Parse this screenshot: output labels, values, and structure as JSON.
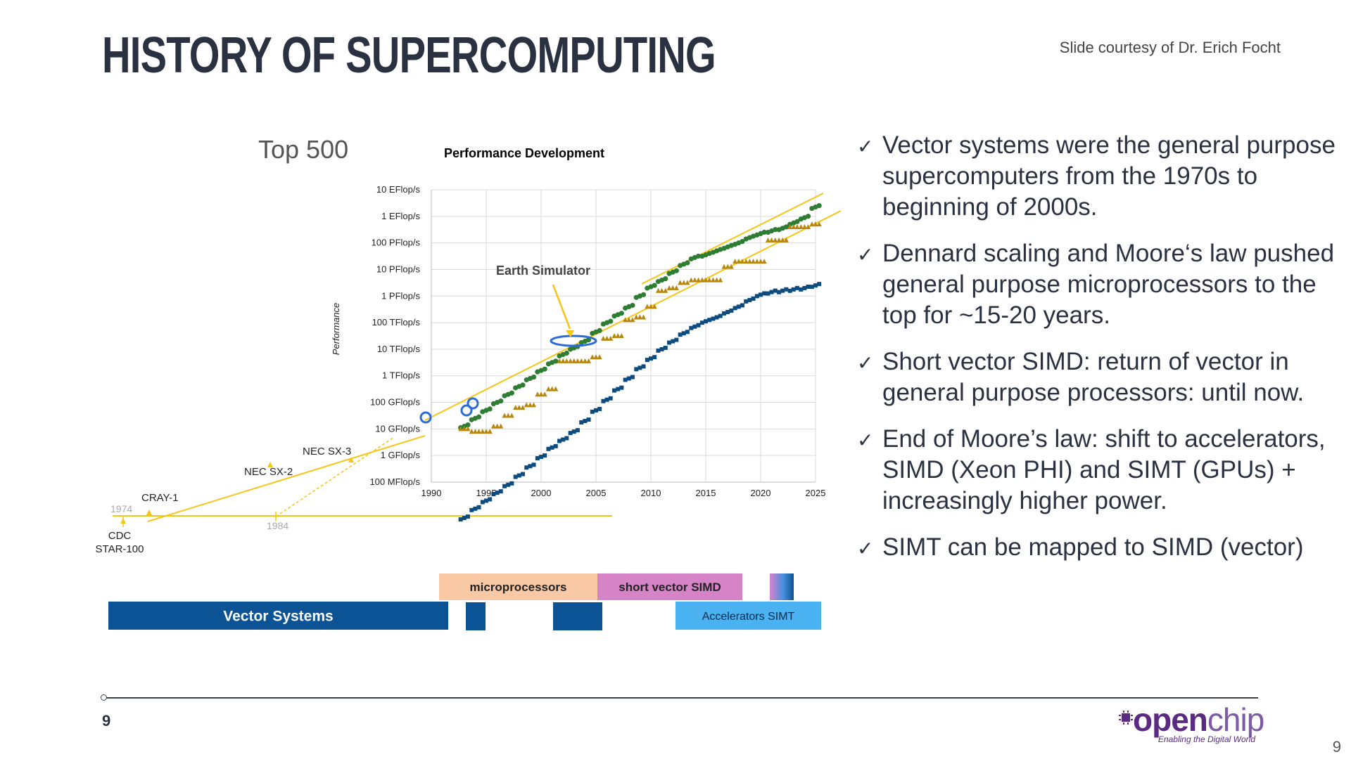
{
  "slide": {
    "title": "HISTORY OF SUPERCOMPUTING",
    "credit": "Slide courtesy of Dr. Erich Focht",
    "top500_label": "Top 500",
    "page_left": "9",
    "page_right": "9"
  },
  "bullets": [
    "Vector systems were the general purpose supercomputers from the 1970s to beginning of 2000s.",
    "Dennard scaling and Moore‘s law pushed general purpose microprocessors to the top for ~15-20 years.",
    "Short vector SIMD: return of vector in general purpose processors: until now.",
    "End of Moore’s law: shift to accelerators, SIMD (Xeon PHI) and SIMT (GPUs) + increasingly higher power.",
    "SIMT can be mapped to SIMD (vector)"
  ],
  "logo": {
    "text_a": "open",
    "text_b": "chip",
    "tagline": "Enabling the Digital World"
  },
  "chart_data": {
    "type": "scatter",
    "title": "Performance Development",
    "ylabel": "Performance",
    "log_scale_y": true,
    "x_ticks": [
      1990,
      1995,
      2000,
      2005,
      2010,
      2015,
      2020,
      2025
    ],
    "xlim": [
      1990,
      2025
    ],
    "y_ticks": [
      "100 MFlop/s",
      "1 GFlop/s",
      "10 GFlop/s",
      "100 GFlop/s",
      "1 TFlop/s",
      "10 TFlop/s",
      "100 TFlop/s",
      "1 PFlop/s",
      "10 PFlop/s",
      "100 PFlop/s",
      "1 EFlop/s",
      "10 EFlop/s"
    ],
    "ylim_log10_flops": [
      8,
      19
    ],
    "grid": true,
    "series": [
      {
        "color": "#2e7d32",
        "marker": "circle",
        "x": [
          1993,
          1994,
          1995,
          1996,
          1997,
          1998,
          1999,
          2000,
          2001,
          2002,
          2003,
          2004,
          2005,
          2006,
          2007,
          2008,
          2009,
          2010,
          2011,
          2012,
          2013,
          2014,
          2015,
          2016,
          2017,
          2018,
          2019,
          2020,
          2021,
          2022,
          2023,
          2024,
          2025
        ],
        "y": [
          1.1,
          1.4,
          1.7,
          2.0,
          2.3,
          2.6,
          2.9,
          3.2,
          3.5,
          3.8,
          4.05,
          4.3,
          4.65,
          5.0,
          5.3,
          5.6,
          6.0,
          6.35,
          6.6,
          6.9,
          7.2,
          7.45,
          7.55,
          7.7,
          7.85,
          8.0,
          8.2,
          8.35,
          8.45,
          8.55,
          8.75,
          8.95,
          9.35
        ]
      },
      {
        "color": "#b8860b",
        "marker": "triangle",
        "x": [
          1993,
          1994,
          1995,
          1996,
          1997,
          1998,
          1999,
          2000,
          2001,
          2002,
          2003,
          2004,
          2005,
          2006,
          2007,
          2008,
          2009,
          2010,
          2011,
          2012,
          2013,
          2014,
          2015,
          2016,
          2017,
          2018,
          2019,
          2020,
          2021,
          2022,
          2023,
          2024,
          2025
        ],
        "y": [
          1.0,
          0.9,
          0.9,
          1.1,
          1.5,
          1.8,
          1.9,
          2.3,
          2.5,
          3.55,
          3.55,
          3.55,
          3.7,
          4.4,
          4.5,
          5.1,
          5.2,
          5.6,
          6.2,
          6.3,
          6.5,
          6.6,
          6.6,
          6.6,
          7.1,
          7.3,
          7.3,
          7.3,
          8.1,
          8.1,
          8.6,
          8.6,
          8.7
        ]
      },
      {
        "color": "#0d4c80",
        "marker": "square",
        "x": [
          1993,
          1994,
          1995,
          1996,
          1997,
          1998,
          1999,
          2000,
          2001,
          2002,
          2003,
          2004,
          2005,
          2006,
          2007,
          2008,
          2009,
          2010,
          2011,
          2012,
          2013,
          2014,
          2015,
          2016,
          2017,
          2018,
          2019,
          2020,
          2021,
          2022,
          2023,
          2024,
          2025
        ],
        "y": [
          -2.35,
          -2.0,
          -1.7,
          -1.4,
          -1.1,
          -0.75,
          -0.4,
          -0.05,
          0.3,
          0.6,
          0.9,
          1.3,
          1.7,
          2.1,
          2.5,
          2.9,
          3.3,
          3.65,
          4.0,
          4.3,
          4.6,
          4.85,
          5.05,
          5.2,
          5.4,
          5.6,
          5.85,
          6.05,
          6.15,
          6.2,
          6.25,
          6.3,
          6.4
        ]
      }
    ],
    "annotations": [
      {
        "text": "Earth Simulator"
      },
      {
        "text": "NEC SX-3"
      },
      {
        "text": "NEC SX-2"
      },
      {
        "text": "CRAY-1"
      },
      {
        "text": "CDC"
      },
      {
        "text": "STAR-100"
      },
      {
        "text": "1974"
      },
      {
        "text": "1984"
      }
    ],
    "timeline": [
      {
        "label": "Vector Systems",
        "color": "#0b5394",
        "text_color": "#ffffff"
      },
      {
        "label": "microprocessors",
        "color": "#f8c9a4",
        "text_color": "#222222"
      },
      {
        "label": "short vector SIMD",
        "color": "#d783c8",
        "text_color": "#222222"
      },
      {
        "label": "Accelerators SIMT",
        "color": "#4ab2f0",
        "text_color": "#0b2a4a"
      }
    ]
  }
}
